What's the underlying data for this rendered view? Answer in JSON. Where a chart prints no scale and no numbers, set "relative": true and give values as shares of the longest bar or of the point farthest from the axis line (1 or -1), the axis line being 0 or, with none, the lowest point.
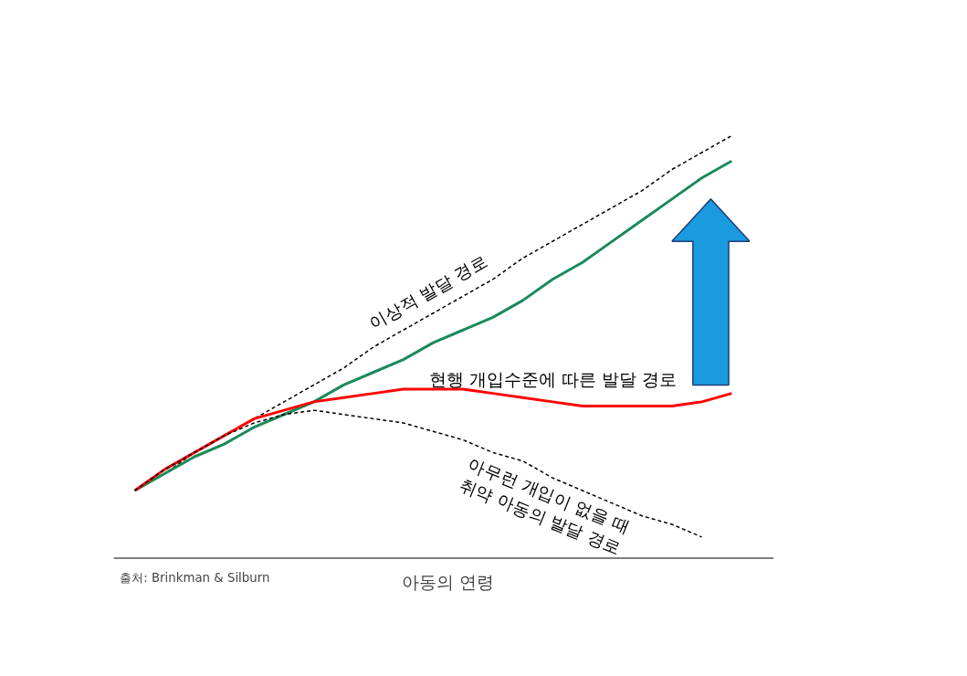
{
  "chart_data": {
    "type": "line",
    "relative": true,
    "xlabel": "아동의 연령",
    "annotations": [
      "출처: Brinkman & Silburn"
    ],
    "grid": false,
    "tick_labels": false,
    "marker": "none",
    "categories": [
      null,
      null,
      null,
      null,
      null,
      null,
      null,
      null,
      null,
      null,
      null,
      null,
      null,
      null,
      null,
      null,
      null,
      null,
      null,
      null,
      null
    ],
    "series": [
      {
        "name": "이상적 발달 경로",
        "color": "#000000",
        "line_style": "dashed",
        "values": [
          0.16,
          0.2,
          0.25,
          0.29,
          0.33,
          0.37,
          0.41,
          0.45,
          0.5,
          0.54,
          0.58,
          0.62,
          0.66,
          0.71,
          0.75,
          0.79,
          0.83,
          0.87,
          0.92,
          0.96,
          1.0
        ]
      },
      {
        "color": "#1a8a5a",
        "line_style": "solid",
        "values": [
          0.16,
          0.2,
          0.24,
          0.27,
          0.31,
          0.34,
          0.37,
          0.41,
          0.44,
          0.47,
          0.51,
          0.54,
          0.57,
          0.61,
          0.66,
          0.7,
          0.75,
          0.8,
          0.85,
          0.9,
          0.94
        ]
      },
      {
        "name": "현행 개입수준에 따른 발달 경로",
        "color": "#ff0000",
        "line_style": "solid",
        "values": [
          0.16,
          0.21,
          0.25,
          0.29,
          0.33,
          0.35,
          0.37,
          0.38,
          0.39,
          0.4,
          0.4,
          0.4,
          0.39,
          0.38,
          0.37,
          0.36,
          0.36,
          0.36,
          0.36,
          0.37,
          0.39
        ]
      },
      {
        "name": "아무런 개입이 없을 때 취약 아동의 발달 경로",
        "color": "#000000",
        "line_style": "dashed",
        "values": [
          0.16,
          0.21,
          0.25,
          0.29,
          0.32,
          0.34,
          0.35,
          0.34,
          0.33,
          0.32,
          0.3,
          0.28,
          0.25,
          0.23,
          0.19,
          0.16,
          0.13,
          0.1,
          0.08,
          0.05,
          null
        ]
      }
    ]
  }
}
